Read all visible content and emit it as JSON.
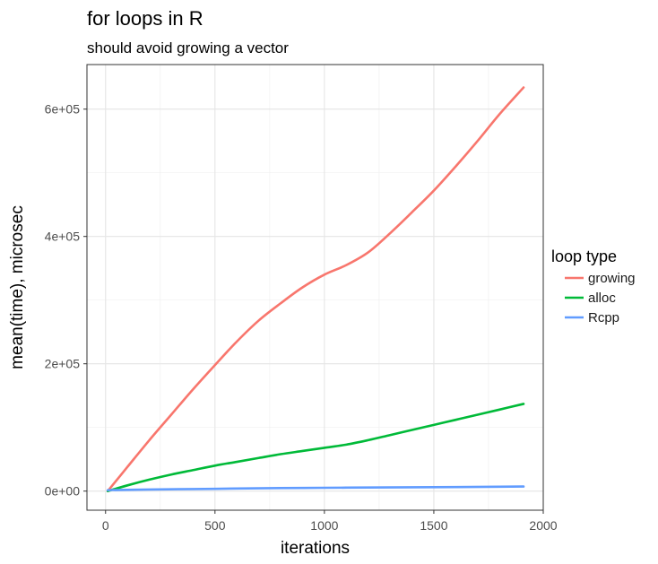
{
  "chart_data": {
    "type": "line",
    "title": "for loops in R",
    "subtitle": "should avoid growing a vector",
    "xlabel": "iterations",
    "ylabel": "mean(time), microsec",
    "xlim": [
      -85,
      2000
    ],
    "ylim": [
      -30000,
      670000
    ],
    "x_ticks": [
      0,
      500,
      1000,
      1500,
      2000
    ],
    "x_tick_labels": [
      "0",
      "500",
      "1000",
      "1500",
      "2000"
    ],
    "y_ticks": [
      0,
      200000,
      400000,
      600000
    ],
    "y_tick_labels": [
      "0e+00",
      "2e+05",
      "4e+05",
      "6e+05"
    ],
    "x_minor_ticks": [
      250,
      750,
      1250,
      1750
    ],
    "y_minor_ticks": [
      100000,
      300000,
      500000
    ],
    "grid": true,
    "legend": {
      "title": "loop type",
      "position": "right"
    },
    "series": [
      {
        "name": "growing",
        "color": "#F8766D",
        "points": [
          [
            10,
            0
          ],
          [
            100,
            38000
          ],
          [
            200,
            80000
          ],
          [
            300,
            120000
          ],
          [
            400,
            160000
          ],
          [
            500,
            198000
          ],
          [
            600,
            235000
          ],
          [
            700,
            268000
          ],
          [
            800,
            295000
          ],
          [
            900,
            320000
          ],
          [
            1000,
            340000
          ],
          [
            1100,
            355000
          ],
          [
            1200,
            375000
          ],
          [
            1300,
            405000
          ],
          [
            1400,
            438000
          ],
          [
            1500,
            472000
          ],
          [
            1600,
            510000
          ],
          [
            1700,
            550000
          ],
          [
            1800,
            592000
          ],
          [
            1910,
            634000
          ]
        ]
      },
      {
        "name": "alloc",
        "color": "#00BA38",
        "points": [
          [
            10,
            0
          ],
          [
            100,
            9000
          ],
          [
            200,
            18000
          ],
          [
            300,
            26000
          ],
          [
            400,
            33000
          ],
          [
            500,
            40000
          ],
          [
            600,
            46000
          ],
          [
            700,
            52000
          ],
          [
            800,
            58000
          ],
          [
            900,
            63000
          ],
          [
            1000,
            68000
          ],
          [
            1100,
            73000
          ],
          [
            1200,
            80000
          ],
          [
            1300,
            88000
          ],
          [
            1400,
            96000
          ],
          [
            1500,
            104000
          ],
          [
            1600,
            112000
          ],
          [
            1700,
            120000
          ],
          [
            1800,
            128000
          ],
          [
            1910,
            137000
          ]
        ]
      },
      {
        "name": "Rcpp",
        "color": "#619CFF",
        "points": [
          [
            10,
            1500
          ],
          [
            200,
            2500
          ],
          [
            400,
            3200
          ],
          [
            600,
            4000
          ],
          [
            800,
            4700
          ],
          [
            1000,
            5200
          ],
          [
            1200,
            5600
          ],
          [
            1400,
            6000
          ],
          [
            1600,
            6400
          ],
          [
            1800,
            6900
          ],
          [
            1910,
            7200
          ]
        ]
      }
    ]
  }
}
